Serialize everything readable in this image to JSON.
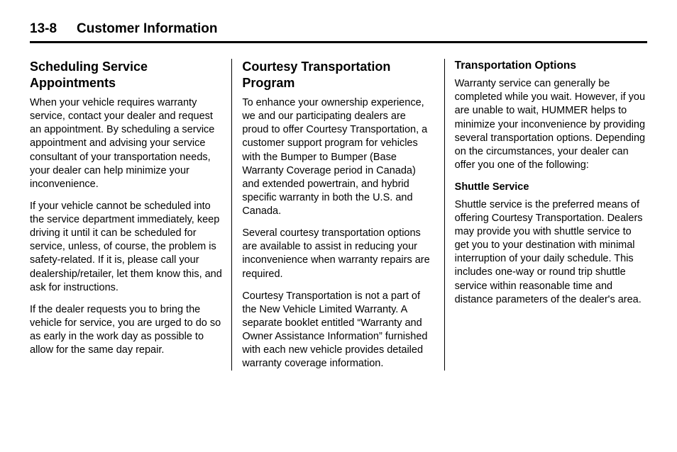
{
  "header": {
    "page_number": "13-8",
    "chapter_title": "Customer Information"
  },
  "columns": [
    {
      "heading": "Scheduling Service Appointments",
      "paragraphs": [
        "When your vehicle requires warranty service, contact your dealer and request an appointment. By scheduling a service appointment and advising your service consultant of your transportation needs, your dealer can help minimize your inconvenience.",
        "If your vehicle cannot be scheduled into the service department immediately, keep driving it until it can be scheduled for service, unless, of course, the problem is safety-related. If it is, please call your dealership/retailer, let them know this, and ask for instructions.",
        "If the dealer requests you to bring the vehicle for service, you are urged to do so as early in the work day as possible to allow for the same day repair."
      ]
    },
    {
      "heading": "Courtesy Transportation Program",
      "paragraphs": [
        "To enhance your ownership experience, we and our participating dealers are proud to offer Courtesy Transportation, a customer support program for vehicles with the Bumper to Bumper (Base Warranty Coverage period in Canada) and extended powertrain, and hybrid specific warranty in both the U.S. and Canada.",
        "Several courtesy transportation options are available to assist in reducing your inconvenience when warranty repairs are required.",
        "Courtesy Transportation is not a part of the New Vehicle Limited Warranty. A separate booklet entitled “Warranty and Owner Assistance Information” furnished with each new vehicle provides detailed warranty coverage information."
      ]
    },
    {
      "sub_heading": "Transportation Options",
      "paragraphs_1": [
        "Warranty service can generally be completed while you wait. However, if you are unable to wait, HUMMER helps to minimize your inconvenience by providing several transportation options. Depending on the circumstances, your dealer can offer you one of the following:"
      ],
      "sub_sub_heading": "Shuttle Service",
      "paragraphs_2": [
        "Shuttle service is the preferred means of offering Courtesy Transportation. Dealers may provide you with shuttle service to get you to your destination with minimal interruption of your daily schedule. This includes one-way or round trip shuttle service within reasonable time and distance parameters of the dealer's area."
      ]
    }
  ]
}
